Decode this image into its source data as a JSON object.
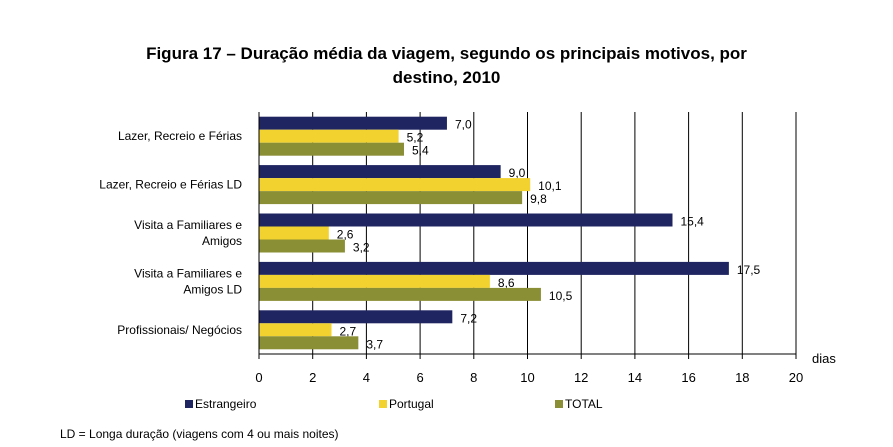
{
  "title_line1": "Figura 17 – Duração média da viagem, segundo os principais motivos, por",
  "title_line2": "destino, 2010",
  "footnote": "LD = Longa duração (viagens com 4 ou mais noites)",
  "chart_data": {
    "type": "bar",
    "orientation": "horizontal",
    "categories": [
      [
        "Lazer, Recreio e Férias"
      ],
      [
        "Lazer, Recreio e Férias LD"
      ],
      [
        "Visita a Familiares e",
        "Amigos"
      ],
      [
        "Visita a Familiares e",
        "Amigos LD"
      ],
      [
        "Profissionais/ Negócios"
      ]
    ],
    "series": [
      {
        "name": "Estrangeiro",
        "color": "#1f2560",
        "values": [
          7.0,
          9.0,
          15.4,
          17.5,
          7.2
        ],
        "labels": [
          "7,0",
          "9,0",
          "15,4",
          "17,5",
          "7,2"
        ]
      },
      {
        "name": "Portugal",
        "color": "#f2d22e",
        "values": [
          5.2,
          10.1,
          2.6,
          8.6,
          2.7
        ],
        "labels": [
          "5,2",
          "10,1",
          "2,6",
          "8,6",
          "2,7"
        ]
      },
      {
        "name": "TOTAL",
        "color": "#8a8f36",
        "values": [
          5.4,
          9.8,
          3.2,
          10.5,
          3.7
        ],
        "labels": [
          "5,4",
          "9,8",
          "3,2",
          "10,5",
          "3,7"
        ]
      }
    ],
    "xlim": [
      0,
      20
    ],
    "xticks": [
      0,
      2,
      4,
      6,
      8,
      10,
      12,
      14,
      16,
      18,
      20
    ],
    "xlabel": "dias",
    "grid": true,
    "legend_position": "bottom"
  }
}
